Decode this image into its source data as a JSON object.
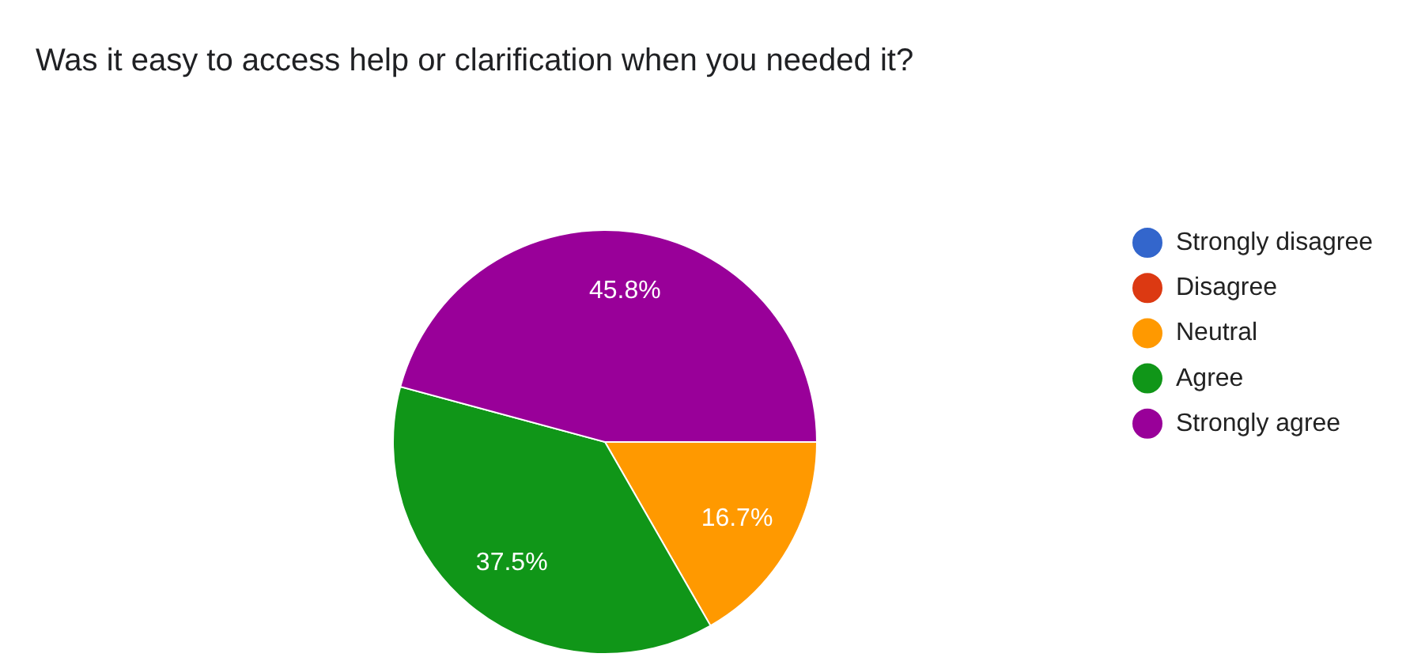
{
  "chart_data": {
    "type": "pie",
    "title": "Was it easy to access help or clarification when you needed it?",
    "categories": [
      "Strongly disagree",
      "Disagree",
      "Neutral",
      "Agree",
      "Strongly agree"
    ],
    "values": [
      0,
      0,
      16.7,
      37.5,
      45.8
    ],
    "colors": [
      "#3366cc",
      "#dc3912",
      "#ff9900",
      "#109618",
      "#990099"
    ],
    "value_labels": [
      null,
      null,
      "16.7%",
      "37.5%",
      "45.8%"
    ],
    "legend": "right"
  }
}
